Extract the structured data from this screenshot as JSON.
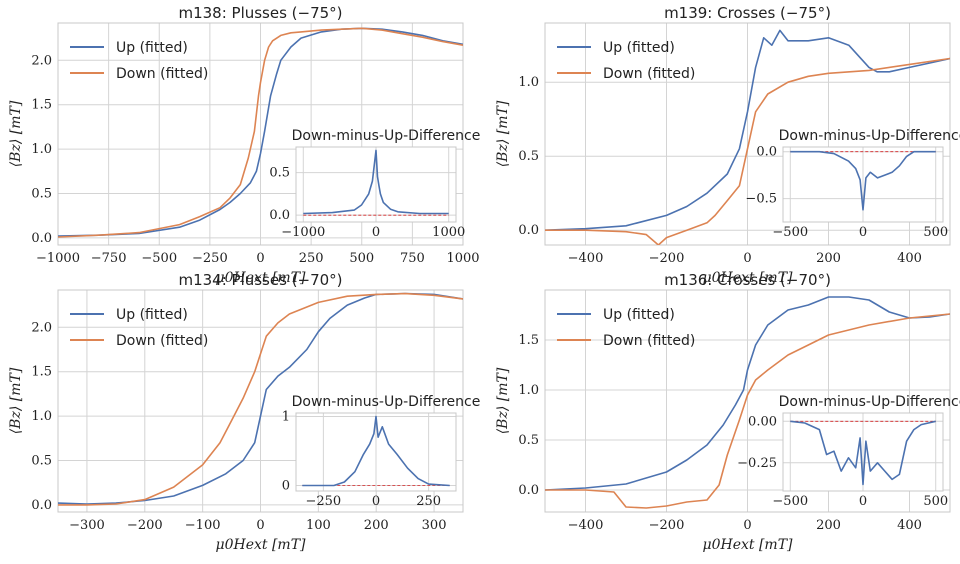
{
  "colors": {
    "up": "#4c72b0",
    "down": "#dd8452",
    "zero": "#d62728",
    "grid": "#d4d4d4"
  },
  "chart_data": [
    {
      "type": "line",
      "title": "m138: Plusses (−75°)",
      "xlabel": "μ0Hext [mT]",
      "ylabel": "⟨Bz⟩ [mT]",
      "xlim": [
        -1000,
        1000
      ],
      "ylim": [
        -0.08,
        2.42
      ],
      "xticks": [
        -1000,
        -750,
        -500,
        -250,
        0,
        250,
        500,
        750,
        1000
      ],
      "yticks": [
        0.0,
        0.5,
        1.0,
        1.5,
        2.0
      ],
      "legend": [
        "Up (fitted)",
        "Down (fitted)"
      ],
      "series": [
        {
          "name": "Up (fitted)",
          "x": [
            -1000,
            -800,
            -600,
            -400,
            -300,
            -200,
            -150,
            -100,
            -50,
            -20,
            0,
            20,
            50,
            80,
            100,
            150,
            200,
            300,
            400,
            500,
            600,
            700,
            800,
            900,
            1000
          ],
          "y": [
            0.02,
            0.03,
            0.05,
            0.12,
            0.2,
            0.32,
            0.4,
            0.5,
            0.62,
            0.75,
            0.95,
            1.2,
            1.6,
            1.85,
            2.0,
            2.15,
            2.25,
            2.32,
            2.35,
            2.36,
            2.35,
            2.32,
            2.28,
            2.22,
            2.18
          ]
        },
        {
          "name": "Down (fitted)",
          "x": [
            -1000,
            -800,
            -600,
            -400,
            -300,
            -200,
            -150,
            -100,
            -60,
            -30,
            -10,
            0,
            20,
            40,
            60,
            100,
            150,
            200,
            300,
            400,
            500,
            600,
            700,
            800,
            900,
            1000
          ],
          "y": [
            0.01,
            0.03,
            0.06,
            0.15,
            0.24,
            0.34,
            0.45,
            0.6,
            0.9,
            1.2,
            1.6,
            1.75,
            2.0,
            2.15,
            2.22,
            2.28,
            2.31,
            2.32,
            2.34,
            2.35,
            2.36,
            2.34,
            2.3,
            2.26,
            2.21,
            2.17
          ]
        }
      ],
      "inset": {
        "title": "Down-minus-Up-Difference",
        "xlim": [
          -1100,
          1100
        ],
        "ylim": [
          -0.08,
          0.8
        ],
        "xticks": [
          -1000,
          0,
          1000
        ],
        "yticks": [
          0.0,
          0.5
        ],
        "x": [
          -1000,
          -600,
          -300,
          -200,
          -100,
          -50,
          0,
          20,
          40,
          60,
          100,
          200,
          300,
          600,
          1000
        ],
        "y": [
          0.02,
          0.03,
          0.06,
          0.12,
          0.25,
          0.4,
          0.76,
          0.45,
          0.35,
          0.25,
          0.15,
          0.07,
          0.04,
          0.02,
          0.02
        ]
      }
    },
    {
      "type": "line",
      "title": "m139: Crosses (−75°)",
      "xlabel": "μ0Hext [mT]",
      "ylabel": "⟨Bz⟩ [mT]",
      "xlim": [
        -500,
        500
      ],
      "ylim": [
        -0.1,
        1.4
      ],
      "xticks": [
        -400,
        -200,
        0,
        200,
        400
      ],
      "yticks": [
        0.0,
        0.5,
        1.0
      ],
      "legend": [
        "Up (fitted)",
        "Down (fitted)"
      ],
      "series": [
        {
          "name": "Up (fitted)",
          "x": [
            -500,
            -400,
            -300,
            -200,
            -150,
            -100,
            -50,
            -20,
            0,
            20,
            40,
            60,
            80,
            100,
            150,
            200,
            250,
            300,
            320,
            350,
            400,
            450,
            500
          ],
          "y": [
            0.0,
            0.01,
            0.03,
            0.1,
            0.16,
            0.25,
            0.38,
            0.55,
            0.8,
            1.1,
            1.3,
            1.25,
            1.35,
            1.28,
            1.28,
            1.3,
            1.25,
            1.1,
            1.07,
            1.07,
            1.1,
            1.13,
            1.16
          ]
        },
        {
          "name": "Down (fitted)",
          "x": [
            -500,
            -400,
            -300,
            -250,
            -220,
            -200,
            -150,
            -100,
            -80,
            -50,
            -20,
            0,
            20,
            50,
            100,
            150,
            200,
            300,
            400,
            500
          ],
          "y": [
            0.0,
            0.0,
            -0.01,
            -0.03,
            -0.1,
            -0.05,
            0.0,
            0.05,
            0.1,
            0.2,
            0.3,
            0.55,
            0.8,
            0.92,
            1.0,
            1.04,
            1.06,
            1.08,
            1.12,
            1.16
          ]
        }
      ],
      "inset": {
        "title": "Down-minus-Up-Difference",
        "xlim": [
          -550,
          550
        ],
        "ylim": [
          -0.75,
          0.05
        ],
        "xticks": [
          -500,
          0,
          500
        ],
        "yticks": [
          0.0,
          -0.5
        ],
        "x": [
          -500,
          -300,
          -200,
          -100,
          -50,
          -20,
          0,
          20,
          50,
          100,
          150,
          200,
          250,
          300,
          350,
          500
        ],
        "y": [
          0.0,
          0.0,
          -0.02,
          -0.1,
          -0.18,
          -0.3,
          -0.62,
          -0.28,
          -0.22,
          -0.28,
          -0.25,
          -0.22,
          -0.15,
          -0.05,
          0.0,
          0.0
        ]
      }
    },
    {
      "type": "line",
      "title": "m134: Plusses (−70°)",
      "xlabel": "μ0Hext [mT]",
      "ylabel": "⟨Bz⟩ [mT]",
      "xlim": [
        -350,
        350
      ],
      "ylim": [
        -0.08,
        2.42
      ],
      "xticks": [
        -300,
        -200,
        -100,
        0,
        100,
        200,
        300
      ],
      "yticks": [
        0.0,
        0.5,
        1.0,
        1.5,
        2.0
      ],
      "legend": [
        "Up (fitted)",
        "Down (fitted)"
      ],
      "series": [
        {
          "name": "Up (fitted)",
          "x": [
            -350,
            -300,
            -250,
            -200,
            -150,
            -100,
            -60,
            -30,
            -10,
            0,
            10,
            30,
            50,
            80,
            100,
            120,
            150,
            180,
            200,
            250,
            300,
            350
          ],
          "y": [
            0.02,
            0.01,
            0.02,
            0.05,
            0.1,
            0.22,
            0.35,
            0.5,
            0.7,
            1.0,
            1.3,
            1.45,
            1.55,
            1.75,
            1.95,
            2.1,
            2.25,
            2.33,
            2.37,
            2.38,
            2.37,
            2.32
          ]
        },
        {
          "name": "Down (fitted)",
          "x": [
            -350,
            -300,
            -250,
            -200,
            -150,
            -100,
            -70,
            -50,
            -30,
            -10,
            0,
            10,
            30,
            50,
            100,
            150,
            200,
            250,
            300,
            350
          ],
          "y": [
            0.0,
            0.0,
            0.01,
            0.06,
            0.2,
            0.45,
            0.7,
            0.95,
            1.2,
            1.5,
            1.7,
            1.9,
            2.05,
            2.15,
            2.28,
            2.35,
            2.37,
            2.38,
            2.36,
            2.32
          ]
        }
      ],
      "inset": {
        "title": "Down-minus-Up-Difference",
        "xlim": [
          -380,
          380
        ],
        "ylim": [
          -0.08,
          1.05
        ],
        "xticks": [
          -250,
          0,
          250
        ],
        "yticks": [
          0,
          1
        ],
        "x": [
          -350,
          -200,
          -150,
          -100,
          -60,
          -30,
          -10,
          0,
          10,
          30,
          60,
          100,
          150,
          200,
          250,
          350
        ],
        "y": [
          0.0,
          0.0,
          0.05,
          0.2,
          0.45,
          0.6,
          0.75,
          1.0,
          0.7,
          0.85,
          0.6,
          0.45,
          0.25,
          0.1,
          0.02,
          0.0
        ]
      }
    },
    {
      "type": "line",
      "title": "m136: Crosses (−70°)",
      "xlabel": "μ0Hext [mT]",
      "ylabel": "⟨Bz⟩ [mT]",
      "xlim": [
        -500,
        500
      ],
      "ylim": [
        -0.22,
        2.0
      ],
      "xticks": [
        -400,
        -200,
        0,
        200,
        400
      ],
      "yticks": [
        0.0,
        0.5,
        1.0,
        1.5
      ],
      "legend": [
        "Up (fitted)",
        "Down (fitted)"
      ],
      "series": [
        {
          "name": "Up (fitted)",
          "x": [
            -500,
            -400,
            -300,
            -200,
            -150,
            -100,
            -60,
            -30,
            -10,
            0,
            20,
            50,
            100,
            150,
            200,
            250,
            300,
            350,
            400,
            450,
            500
          ],
          "y": [
            0.0,
            0.02,
            0.06,
            0.18,
            0.3,
            0.45,
            0.65,
            0.85,
            1.0,
            1.2,
            1.45,
            1.65,
            1.8,
            1.85,
            1.93,
            1.93,
            1.9,
            1.78,
            1.72,
            1.73,
            1.76
          ]
        },
        {
          "name": "Down (fitted)",
          "x": [
            -500,
            -400,
            -330,
            -300,
            -250,
            -200,
            -150,
            -100,
            -70,
            -50,
            -20,
            0,
            20,
            50,
            100,
            150,
            200,
            300,
            400,
            500
          ],
          "y": [
            0.0,
            0.0,
            -0.02,
            -0.17,
            -0.18,
            -0.16,
            -0.12,
            -0.1,
            0.05,
            0.35,
            0.7,
            0.95,
            1.1,
            1.2,
            1.35,
            1.45,
            1.55,
            1.65,
            1.72,
            1.76
          ]
        }
      ],
      "inset": {
        "title": "Down-minus-Up-Difference",
        "xlim": [
          -550,
          550
        ],
        "ylim": [
          -0.42,
          0.05
        ],
        "xticks": [
          -500,
          0,
          500
        ],
        "yticks": [
          0.0,
          -0.25
        ],
        "x": [
          -500,
          -400,
          -300,
          -250,
          -200,
          -150,
          -100,
          -50,
          -20,
          0,
          20,
          50,
          100,
          150,
          200,
          250,
          300,
          350,
          400,
          500
        ],
        "y": [
          0.0,
          -0.01,
          -0.05,
          -0.2,
          -0.18,
          -0.3,
          -0.22,
          -0.28,
          -0.1,
          -0.38,
          -0.12,
          -0.3,
          -0.25,
          -0.3,
          -0.35,
          -0.32,
          -0.12,
          -0.05,
          -0.02,
          0.0
        ]
      }
    }
  ]
}
